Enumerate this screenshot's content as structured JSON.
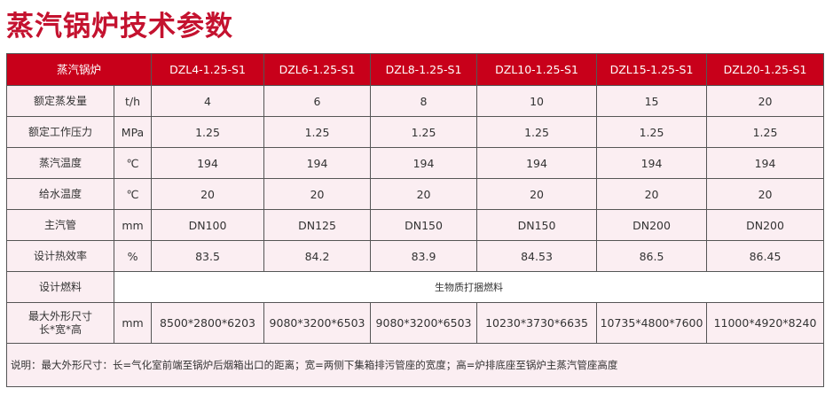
{
  "title": "蒸汽锅炉技术参数",
  "header": {
    "label": "蒸汽锅炉",
    "models": [
      "DZL4-1.25-S1",
      "DZL6-1.25-S1",
      "DZL8-1.25-S1",
      "DZL10-1.25-S1",
      "DZL15-1.25-S1",
      "DZL20-1.25-S1"
    ]
  },
  "rows": [
    {
      "label": "额定蒸发量",
      "unit": "t/h",
      "values": [
        "4",
        "6",
        "8",
        "10",
        "15",
        "20"
      ]
    },
    {
      "label": "额定工作压力",
      "unit": "MPa",
      "values": [
        "1.25",
        "1.25",
        "1.25",
        "1.25",
        "1.25",
        "1.25"
      ]
    },
    {
      "label": "蒸汽温度",
      "unit": "℃",
      "values": [
        "194",
        "194",
        "194",
        "194",
        "194",
        "194"
      ]
    },
    {
      "label": "给水温度",
      "unit": "℃",
      "values": [
        "20",
        "20",
        "20",
        "20",
        "20",
        "20"
      ]
    },
    {
      "label": "主汽管",
      "unit": "mm",
      "values": [
        "DN100",
        "DN125",
        "DN150",
        "DN150",
        "DN200",
        "DN200"
      ]
    },
    {
      "label": "设计热效率",
      "unit": "%",
      "values": [
        "83.5",
        "84.2",
        "83.9",
        "84.53",
        "86.5",
        "86.45"
      ]
    }
  ],
  "fuel": {
    "label": "设计燃料",
    "value": "生物质打捆燃料"
  },
  "dimensions": {
    "label_line1": "最大外形尺寸",
    "label_line2": "长*宽*高",
    "unit": "mm",
    "values": [
      "8500*2800*6203",
      "9080*3200*6503",
      "9080*3200*6503",
      "10230*3730*6635",
      "10735*4800*7600",
      "11000*4920*8240"
    ]
  },
  "note": "说明：最大外形尺寸：长=气化室前端至锅炉后烟箱出口的距离；宽=两侧下集箱排污管座的宽度；高=炉排底座至锅炉主蒸汽管座高度"
}
